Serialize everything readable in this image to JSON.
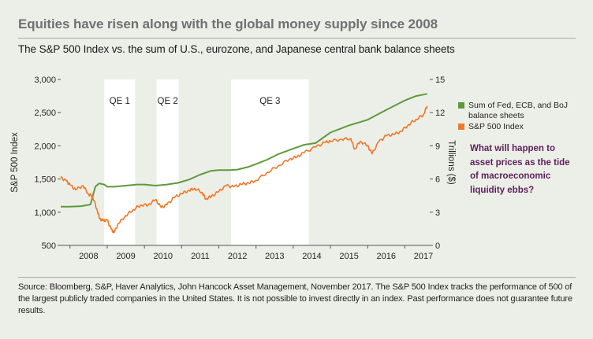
{
  "title": "Equities have risen along with the global money supply since 2008",
  "subtitle": "The S&P 500 Index vs. the sum of U.S., eurozone, and Japanese central bank balance sheets",
  "legend": {
    "balance": "Sum of Fed, ECB, and BoJ balance sheets",
    "sp500": "S&P 500 Index"
  },
  "callout": "What will happen to asset prices as the tide of macroeconomic liquidity ebbs?",
  "source": "Source: Bloomberg, S&P, Haver Analytics, John Hancock Asset Management, November 2017. The S&P 500 Index tracks the performance of 500 of the largest publicly traded companies in the United States. It is not possible to invest directly in an index. Past performance does not guarantee future results.",
  "colors": {
    "green": "#5e9a3c",
    "orange": "#f0782a",
    "background": "#ecefe7",
    "shade": "#ffffff",
    "callout": "#5b1f5b"
  },
  "chart_data": {
    "type": "line",
    "x_ticks": [
      "2008",
      "2009",
      "2010",
      "2011",
      "2012",
      "2013",
      "2014",
      "2015",
      "2016",
      "2017"
    ],
    "x_range": [
      2007.75,
      2017.67
    ],
    "ylabel_left": "S&P 500 Index",
    "ylabel_right": "Trillions ($)",
    "ylim_left": [
      500,
      3000
    ],
    "ylim_right": [
      0,
      15
    ],
    "y_ticks_left": [
      "500",
      "1,000",
      "1,500",
      "2,000",
      "2,500",
      "3,000"
    ],
    "y_ticks_right": [
      "0",
      "3",
      "6",
      "9",
      "12",
      "15"
    ],
    "grid": false,
    "legend_position": "right",
    "shaded_periods": [
      {
        "label": "QE 1",
        "start": 2008.92,
        "end": 2009.75
      },
      {
        "label": "QE 2",
        "start": 2010.33,
        "end": 2010.92
      },
      {
        "label": "QE 3",
        "start": 2012.33,
        "end": 2014.42
      }
    ],
    "series": [
      {
        "name": "Sum of Fed, ECB, and BoJ balance sheets",
        "axis": "right",
        "x": [
          2007.75,
          2008.0,
          2008.3,
          2008.55,
          2008.68,
          2008.78,
          2008.92,
          2009.0,
          2009.2,
          2009.5,
          2009.8,
          2010.0,
          2010.3,
          2010.6,
          2010.9,
          2011.2,
          2011.5,
          2011.8,
          2012.0,
          2012.3,
          2012.5,
          2012.8,
          2013.0,
          2013.3,
          2013.6,
          2014.0,
          2014.3,
          2014.6,
          2015.0,
          2015.5,
          2016.0,
          2016.5,
          2017.0,
          2017.3,
          2017.6
        ],
        "values": [
          3.5,
          3.5,
          3.55,
          3.7,
          5.3,
          5.6,
          5.5,
          5.3,
          5.3,
          5.4,
          5.5,
          5.5,
          5.4,
          5.5,
          5.65,
          5.95,
          6.4,
          6.75,
          6.8,
          6.8,
          6.85,
          7.1,
          7.35,
          7.75,
          8.25,
          8.75,
          9.1,
          9.25,
          10.2,
          10.85,
          11.35,
          12.25,
          13.1,
          13.5,
          13.7
        ]
      },
      {
        "name": "S&P 500 Index",
        "axis": "left",
        "x": [
          2007.75,
          2007.9,
          2008.0,
          2008.15,
          2008.35,
          2008.5,
          2008.6,
          2008.72,
          2008.8,
          2008.9,
          2009.0,
          2009.1,
          2009.18,
          2009.3,
          2009.5,
          2009.7,
          2009.9,
          2010.1,
          2010.3,
          2010.45,
          2010.6,
          2010.8,
          2011.0,
          2011.2,
          2011.35,
          2011.55,
          2011.65,
          2011.8,
          2012.0,
          2012.2,
          2012.4,
          2012.6,
          2012.8,
          2013.0,
          2013.3,
          2013.6,
          2013.9,
          2014.1,
          2014.3,
          2014.6,
          2014.85,
          2015.0,
          2015.3,
          2015.55,
          2015.65,
          2015.8,
          2016.0,
          2016.12,
          2016.3,
          2016.5,
          2016.7,
          2016.9,
          2017.1,
          2017.3,
          2017.5,
          2017.6
        ],
        "values": [
          1520,
          1470,
          1410,
          1340,
          1400,
          1270,
          1250,
          1050,
          900,
          870,
          880,
          750,
          690,
          830,
          950,
          1040,
          1110,
          1110,
          1190,
          1070,
          1110,
          1220,
          1280,
          1330,
          1360,
          1300,
          1200,
          1240,
          1310,
          1400,
          1380,
          1420,
          1440,
          1480,
          1600,
          1700,
          1800,
          1830,
          1900,
          1980,
          2050,
          2070,
          2100,
          2110,
          1950,
          2070,
          2000,
          1880,
          2060,
          2150,
          2170,
          2220,
          2320,
          2400,
          2470,
          2600
        ]
      }
    ]
  }
}
